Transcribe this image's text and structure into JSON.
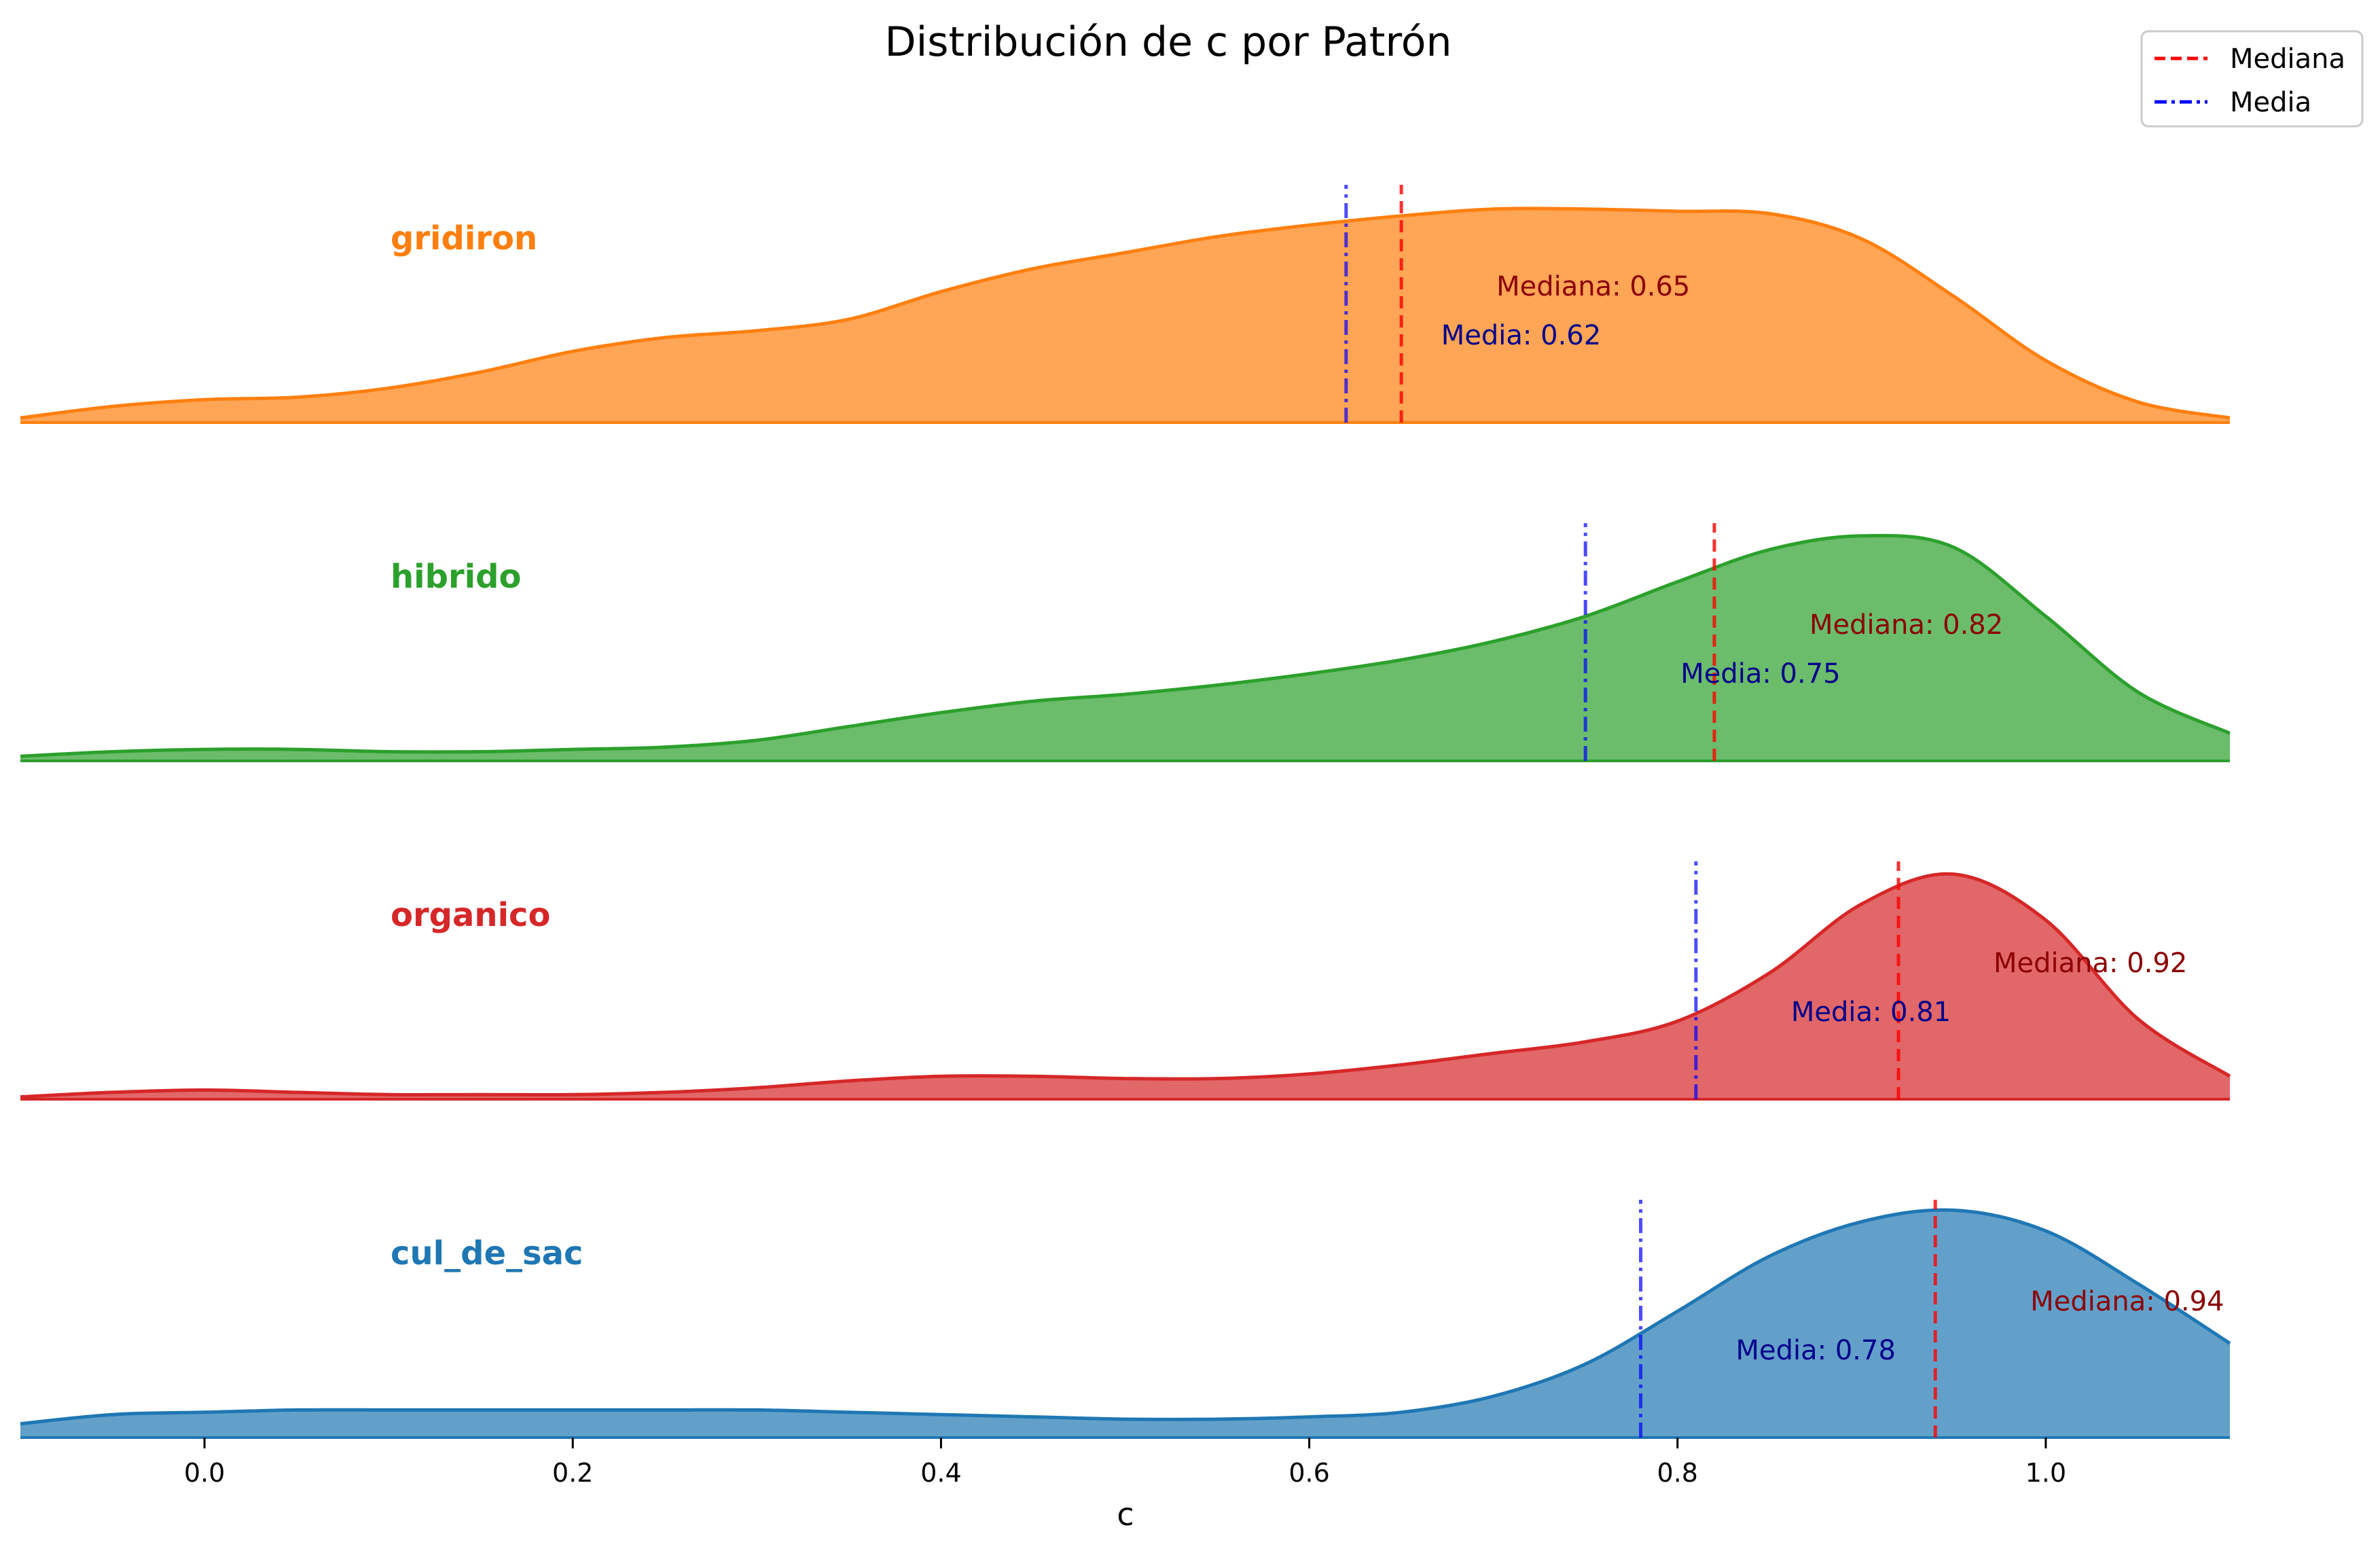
{
  "chart_data": {
    "type": "area",
    "title": "Distribución de c por Patrón",
    "xlabel": "c",
    "xlim": [
      -0.1,
      1.1
    ],
    "xticks": [
      0.0,
      0.2,
      0.4,
      0.6,
      0.8,
      1.0
    ],
    "xtick_labels": [
      "0.0",
      "0.2",
      "0.4",
      "0.6",
      "0.8",
      "1.0"
    ],
    "grid": false,
    "legend": {
      "placement": "top-right",
      "entries": [
        {
          "label": "Mediana",
          "color": "#ff0000",
          "style": "dashed"
        },
        {
          "label": "Media",
          "color": "#0000ff",
          "style": "dashdot"
        }
      ]
    },
    "series": [
      {
        "name": "gridiron",
        "color": "#ff7f0e",
        "median": 0.65,
        "median_label": "Mediana: 0.65",
        "mean": 0.62,
        "mean_label": "Media: 0.62",
        "density": {
          "x": [
            -0.1,
            -0.05,
            0.0,
            0.05,
            0.1,
            0.15,
            0.2,
            0.25,
            0.3,
            0.35,
            0.4,
            0.45,
            0.5,
            0.55,
            0.6,
            0.65,
            0.7,
            0.75,
            0.8,
            0.85,
            0.9,
            0.95,
            1.0,
            1.05,
            1.1
          ],
          "y": [
            0.02,
            0.07,
            0.1,
            0.11,
            0.15,
            0.22,
            0.31,
            0.37,
            0.4,
            0.45,
            0.57,
            0.67,
            0.74,
            0.81,
            0.86,
            0.9,
            0.93,
            0.93,
            0.92,
            0.91,
            0.8,
            0.55,
            0.27,
            0.09,
            0.02
          ]
        }
      },
      {
        "name": "hibrido",
        "color": "#2ca02c",
        "median": 0.82,
        "median_label": "Mediana: 0.82",
        "mean": 0.75,
        "mean_label": "Media: 0.75",
        "density": {
          "x": [
            -0.1,
            -0.05,
            0.0,
            0.05,
            0.1,
            0.15,
            0.2,
            0.25,
            0.3,
            0.35,
            0.4,
            0.45,
            0.5,
            0.55,
            0.6,
            0.65,
            0.7,
            0.75,
            0.8,
            0.85,
            0.9,
            0.95,
            1.0,
            1.05,
            1.1
          ],
          "y": [
            0.02,
            0.04,
            0.05,
            0.05,
            0.04,
            0.04,
            0.05,
            0.06,
            0.09,
            0.15,
            0.21,
            0.26,
            0.29,
            0.33,
            0.38,
            0.44,
            0.52,
            0.63,
            0.78,
            0.92,
            0.98,
            0.93,
            0.63,
            0.3,
            0.12
          ]
        }
      },
      {
        "name": "organico",
        "color": "#d62728",
        "median": 0.92,
        "median_label": "Mediana: 0.92",
        "mean": 0.81,
        "mean_label": "Media: 0.81",
        "density": {
          "x": [
            -0.1,
            -0.05,
            0.0,
            0.05,
            0.1,
            0.15,
            0.2,
            0.25,
            0.3,
            0.35,
            0.4,
            0.45,
            0.5,
            0.55,
            0.6,
            0.65,
            0.7,
            0.75,
            0.8,
            0.85,
            0.9,
            0.95,
            1.0,
            1.05,
            1.1
          ],
          "y": [
            0.01,
            0.03,
            0.04,
            0.03,
            0.02,
            0.02,
            0.02,
            0.03,
            0.05,
            0.08,
            0.1,
            0.1,
            0.09,
            0.09,
            0.11,
            0.15,
            0.2,
            0.25,
            0.34,
            0.55,
            0.85,
            0.98,
            0.78,
            0.35,
            0.1
          ]
        }
      },
      {
        "name": "cul_de_sac",
        "color": "#1f77b4",
        "median": 0.94,
        "median_label": "Mediana: 0.94",
        "mean": 0.78,
        "mean_label": "Media: 0.78",
        "density": {
          "x": [
            -0.1,
            -0.05,
            0.0,
            0.05,
            0.1,
            0.15,
            0.2,
            0.25,
            0.3,
            0.35,
            0.4,
            0.45,
            0.5,
            0.55,
            0.6,
            0.65,
            0.7,
            0.75,
            0.8,
            0.85,
            0.9,
            0.95,
            1.0,
            1.05,
            1.1
          ],
          "y": [
            0.06,
            0.1,
            0.11,
            0.12,
            0.12,
            0.12,
            0.12,
            0.12,
            0.12,
            0.11,
            0.1,
            0.09,
            0.08,
            0.08,
            0.09,
            0.11,
            0.18,
            0.32,
            0.55,
            0.79,
            0.94,
            0.99,
            0.9,
            0.67,
            0.41
          ]
        }
      }
    ]
  }
}
